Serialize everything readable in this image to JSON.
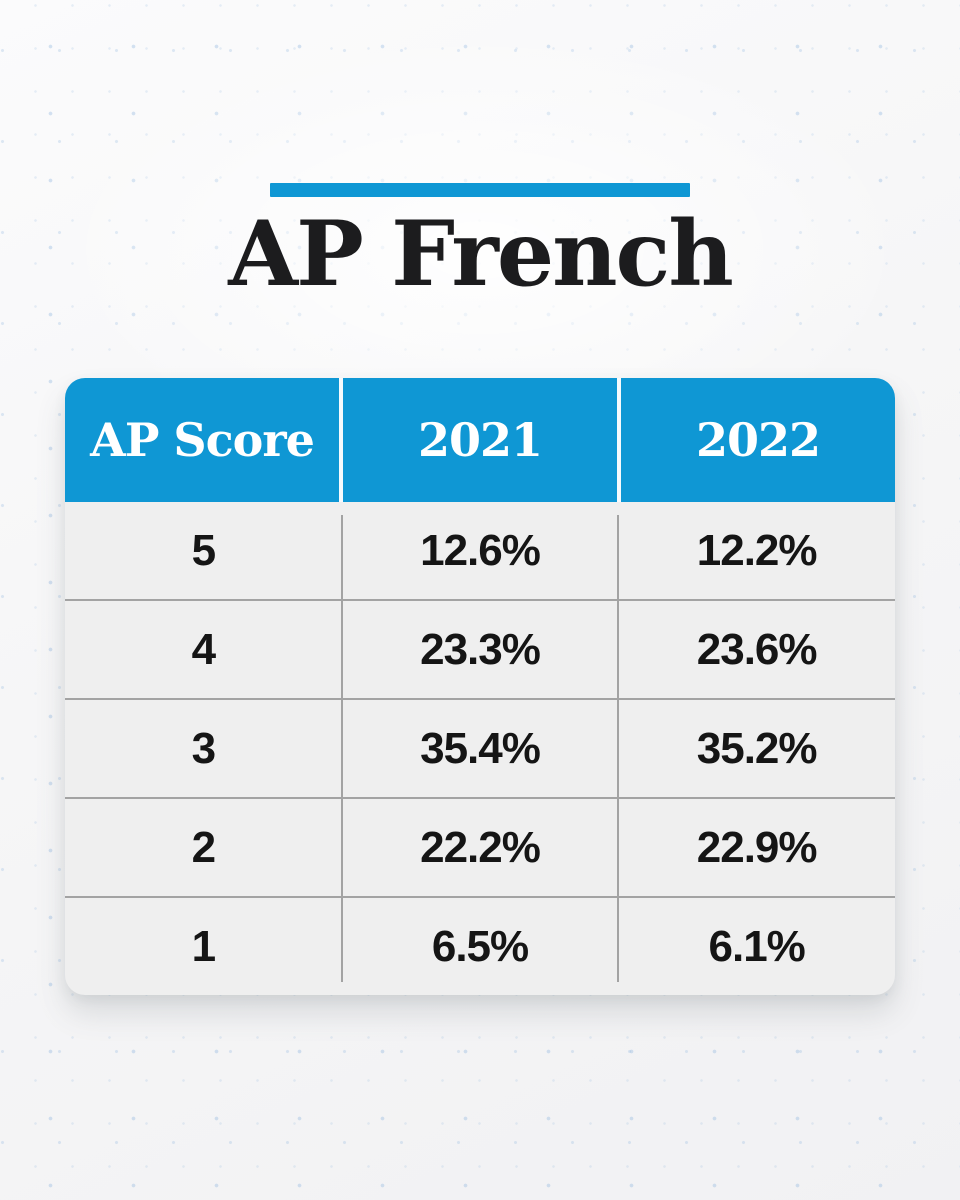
{
  "title": {
    "text": "AP French"
  },
  "colors": {
    "accent_blue": "#0f97d4",
    "header_text": "#ffffff",
    "card_background": "#efefef",
    "body_text": "#151515",
    "divider_gray": "#a3a3a3",
    "background_dots": "#96bae0"
  },
  "chart_data": {
    "type": "table",
    "title": "AP French",
    "columns": [
      "AP Score",
      "2021",
      "2022"
    ],
    "rows": [
      [
        "5",
        "12.6%",
        "12.2%"
      ],
      [
        "4",
        "23.3%",
        "23.6%"
      ],
      [
        "3",
        "35.4%",
        "35.2%"
      ],
      [
        "2",
        "22.2%",
        "22.9%"
      ],
      [
        "1",
        "6.5%",
        "6.1%"
      ]
    ]
  }
}
